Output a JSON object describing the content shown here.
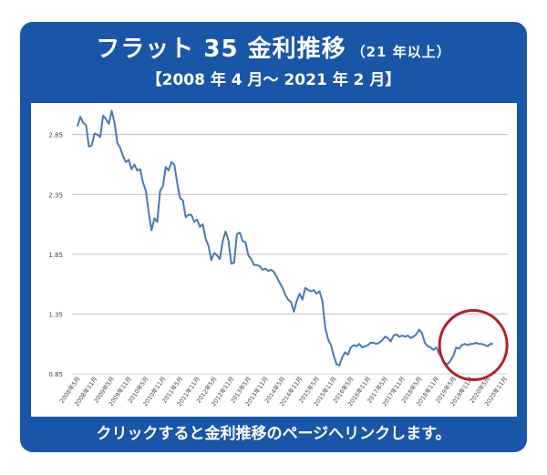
{
  "header": {
    "title": "フラット 35 金利推移",
    "subtitle": "（21 年以上）",
    "period": "【2008 年 4 月～ 2021 年 2 月】"
  },
  "footer": {
    "link_text": "クリックすると金利推移のページへリンクします。"
  },
  "colors": {
    "brand": "#1a56a8",
    "line": "#4a78b4",
    "highlight": "#b0202a",
    "grid": "#bdbdbd"
  },
  "chart_data": {
    "type": "line",
    "title": "",
    "xlabel": "",
    "ylabel": "",
    "ylim": [
      0.85,
      3.0
    ],
    "yticks": [
      0.85,
      1.35,
      1.85,
      2.35,
      2.85
    ],
    "ytick_labels": [
      "0.85",
      "1.35",
      "1.85",
      "2.35",
      "2.85"
    ],
    "xtick_labels": [
      "2008年5月",
      "2008年11月",
      "2009年5月",
      "2009年11月",
      "2010年5月",
      "2010年11月",
      "2011年5月",
      "2011年11月",
      "2012年5月",
      "2012年11月",
      "2013年5月",
      "2013年11月",
      "2014年5月",
      "2014年11月",
      "2015年5月",
      "2015年11月",
      "2016年5月",
      "2016年11月",
      "2017年5月",
      "2017年11月",
      "2018年5月",
      "2018年11月",
      "2019年5月",
      "2019年11月",
      "2020年5月",
      "2020年11月"
    ],
    "grid": true,
    "annotation": "circle highlighting 2020年5月–2021年2月",
    "series": [
      {
        "values": [
          2.92,
          3.0,
          2.95,
          2.93,
          2.75,
          2.76,
          2.86,
          2.85,
          2.83,
          3.01,
          2.98,
          2.94,
          3.05,
          2.95,
          2.78,
          2.74,
          2.67,
          2.62,
          2.64,
          2.56,
          2.6,
          2.55,
          2.56,
          2.45,
          2.38,
          2.2,
          2.05,
          2.15,
          2.12,
          2.38,
          2.42,
          2.58,
          2.55,
          2.62,
          2.6,
          2.45,
          2.32,
          2.3,
          2.16,
          2.18,
          2.18,
          2.12,
          2.14,
          2.08,
          2.1,
          1.98,
          1.92,
          1.8,
          1.86,
          1.84,
          1.81,
          1.96,
          2.04,
          1.97,
          1.77,
          1.78,
          2.02,
          2.03,
          1.96,
          1.95,
          1.84,
          1.81,
          1.76,
          1.76,
          1.75,
          1.72,
          1.73,
          1.71,
          1.72,
          1.7,
          1.66,
          1.61,
          1.57,
          1.51,
          1.47,
          1.45,
          1.37,
          1.46,
          1.52,
          1.47,
          1.57,
          1.55,
          1.54,
          1.55,
          1.52,
          1.54,
          1.46,
          1.24,
          1.14,
          1.09,
          1.0,
          0.93,
          0.92,
          0.99,
          1.03,
          1.01,
          1.07,
          1.09,
          1.08,
          1.1,
          1.07,
          1.08,
          1.09,
          1.11,
          1.11,
          1.1,
          1.11,
          1.13,
          1.16,
          1.15,
          1.12,
          1.17,
          1.18,
          1.16,
          1.17,
          1.16,
          1.17,
          1.15,
          1.16,
          1.18,
          1.22,
          1.19,
          1.11,
          1.08,
          1.07,
          1.05,
          1.07,
          1.02,
          0.98,
          0.94,
          0.93,
          0.96,
          1.0,
          1.07,
          1.06,
          1.09,
          1.1,
          1.09,
          1.1,
          1.1,
          1.11,
          1.1,
          1.1,
          1.09,
          1.08,
          1.1,
          1.1
        ]
      }
    ]
  }
}
